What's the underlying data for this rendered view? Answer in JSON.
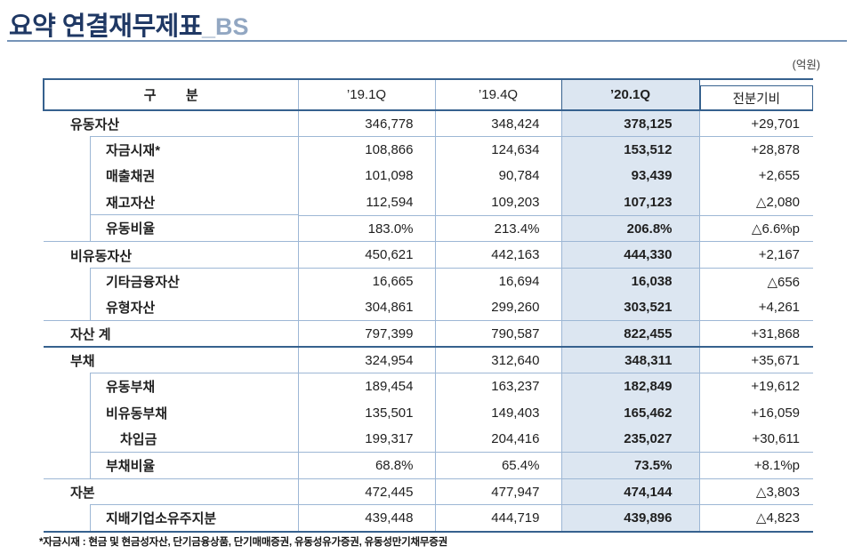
{
  "page": {
    "title": "요약 연결재무제표",
    "title_suffix": "_BS",
    "unit_label": "(억원)",
    "footnote": "*자금시재 : 현금 및 현금성자산, 단기금융상품, 단기매매증권, 유동성유가증권, 유동성만기채무증권"
  },
  "colors": {
    "accent_dark": "#36618E",
    "grid_line": "#9DB7D5",
    "highlight_fill": "#DCE6F1",
    "title_navy": "#1F3864",
    "title_suffix_blue": "#92A7C2"
  },
  "table": {
    "header": {
      "category": "구        분",
      "q1_19": "’19.1Q",
      "q4_19": "’19.4Q",
      "q1_20": "’20.1Q",
      "delta": "전분기비"
    },
    "rows": [
      {
        "label": "유동자산",
        "indent": 0,
        "top": "none",
        "values": [
          "346,778",
          "348,424",
          "378,125",
          "+29,701"
        ]
      },
      {
        "label": "자금시재*",
        "indent": 1,
        "top": "thin",
        "values": [
          "108,866",
          "124,634",
          "153,512",
          "+28,878"
        ]
      },
      {
        "label": "매출채권",
        "indent": 1,
        "top": "none",
        "values": [
          "101,098",
          "90,784",
          "93,439",
          "+2,655"
        ]
      },
      {
        "label": "재고자산",
        "indent": 1,
        "top": "none",
        "values": [
          "112,594",
          "109,203",
          "107,123",
          "△2,080"
        ]
      },
      {
        "label": "유동비율",
        "indent": 1,
        "top": "thin",
        "values": [
          "183.0%",
          "213.4%",
          "206.8%",
          "△6.6%p"
        ]
      },
      {
        "label": "비유동자산",
        "indent": 0,
        "top": "thin",
        "values": [
          "450,621",
          "442,163",
          "444,330",
          "+2,167"
        ]
      },
      {
        "label": "기타금융자산",
        "indent": 1,
        "top": "thin",
        "values": [
          "16,665",
          "16,694",
          "16,038",
          "△656"
        ]
      },
      {
        "label": "유형자산",
        "indent": 1,
        "top": "none",
        "values": [
          "304,861",
          "299,260",
          "303,521",
          "+4,261"
        ]
      },
      {
        "label": "자산 계",
        "indent": 0,
        "top": "thin",
        "values": [
          "797,399",
          "790,587",
          "822,455",
          "+31,868"
        ]
      },
      {
        "label": "부채",
        "indent": 0,
        "top": "thick",
        "values": [
          "324,954",
          "312,640",
          "348,311",
          "+35,671"
        ]
      },
      {
        "label": "유동부채",
        "indent": 1,
        "top": "thin",
        "values": [
          "189,454",
          "163,237",
          "182,849",
          "+19,612"
        ]
      },
      {
        "label": "비유동부채",
        "indent": 1,
        "top": "none",
        "values": [
          "135,501",
          "149,403",
          "165,462",
          "+16,059"
        ]
      },
      {
        "label": "차입금",
        "indent": 2,
        "top": "none",
        "values": [
          "199,317",
          "204,416",
          "235,027",
          "+30,611"
        ]
      },
      {
        "label": "부채비율",
        "indent": 1,
        "top": "thin",
        "values": [
          "68.8%",
          "65.4%",
          "73.5%",
          "+8.1%p"
        ]
      },
      {
        "label": "자본",
        "indent": 0,
        "top": "thin",
        "values": [
          "472,445",
          "477,947",
          "474,144",
          "△3,803"
        ]
      },
      {
        "label": "지배기업소유주지분",
        "indent": 1,
        "top": "thin",
        "values": [
          "439,448",
          "444,719",
          "439,896",
          "△4,823"
        ]
      }
    ]
  }
}
